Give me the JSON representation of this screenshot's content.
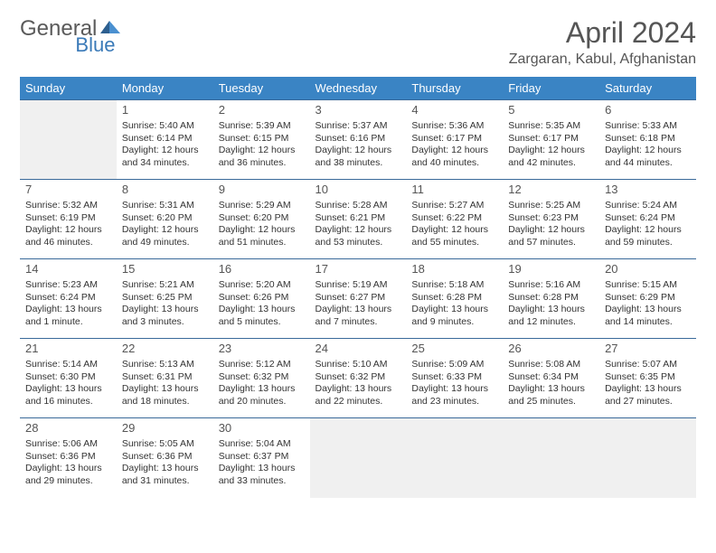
{
  "logo": {
    "part1": "General",
    "part2": "Blue"
  },
  "title": "April 2024",
  "location": "Zargaran, Kabul, Afghanistan",
  "colors": {
    "header_bg": "#3a84c4",
    "header_text": "#ffffff",
    "border": "#3a6a9a",
    "empty_bg": "#f0f0f0",
    "text": "#333333",
    "title_text": "#555555",
    "logo_gray": "#5a5a5a",
    "logo_blue": "#3a7ab8"
  },
  "weekdays": [
    "Sunday",
    "Monday",
    "Tuesday",
    "Wednesday",
    "Thursday",
    "Friday",
    "Saturday"
  ],
  "weeks": [
    [
      null,
      {
        "n": "1",
        "sr": "Sunrise: 5:40 AM",
        "ss": "Sunset: 6:14 PM",
        "d1": "Daylight: 12 hours",
        "d2": "and 34 minutes."
      },
      {
        "n": "2",
        "sr": "Sunrise: 5:39 AM",
        "ss": "Sunset: 6:15 PM",
        "d1": "Daylight: 12 hours",
        "d2": "and 36 minutes."
      },
      {
        "n": "3",
        "sr": "Sunrise: 5:37 AM",
        "ss": "Sunset: 6:16 PM",
        "d1": "Daylight: 12 hours",
        "d2": "and 38 minutes."
      },
      {
        "n": "4",
        "sr": "Sunrise: 5:36 AM",
        "ss": "Sunset: 6:17 PM",
        "d1": "Daylight: 12 hours",
        "d2": "and 40 minutes."
      },
      {
        "n": "5",
        "sr": "Sunrise: 5:35 AM",
        "ss": "Sunset: 6:17 PM",
        "d1": "Daylight: 12 hours",
        "d2": "and 42 minutes."
      },
      {
        "n": "6",
        "sr": "Sunrise: 5:33 AM",
        "ss": "Sunset: 6:18 PM",
        "d1": "Daylight: 12 hours",
        "d2": "and 44 minutes."
      }
    ],
    [
      {
        "n": "7",
        "sr": "Sunrise: 5:32 AM",
        "ss": "Sunset: 6:19 PM",
        "d1": "Daylight: 12 hours",
        "d2": "and 46 minutes."
      },
      {
        "n": "8",
        "sr": "Sunrise: 5:31 AM",
        "ss": "Sunset: 6:20 PM",
        "d1": "Daylight: 12 hours",
        "d2": "and 49 minutes."
      },
      {
        "n": "9",
        "sr": "Sunrise: 5:29 AM",
        "ss": "Sunset: 6:20 PM",
        "d1": "Daylight: 12 hours",
        "d2": "and 51 minutes."
      },
      {
        "n": "10",
        "sr": "Sunrise: 5:28 AM",
        "ss": "Sunset: 6:21 PM",
        "d1": "Daylight: 12 hours",
        "d2": "and 53 minutes."
      },
      {
        "n": "11",
        "sr": "Sunrise: 5:27 AM",
        "ss": "Sunset: 6:22 PM",
        "d1": "Daylight: 12 hours",
        "d2": "and 55 minutes."
      },
      {
        "n": "12",
        "sr": "Sunrise: 5:25 AM",
        "ss": "Sunset: 6:23 PM",
        "d1": "Daylight: 12 hours",
        "d2": "and 57 minutes."
      },
      {
        "n": "13",
        "sr": "Sunrise: 5:24 AM",
        "ss": "Sunset: 6:24 PM",
        "d1": "Daylight: 12 hours",
        "d2": "and 59 minutes."
      }
    ],
    [
      {
        "n": "14",
        "sr": "Sunrise: 5:23 AM",
        "ss": "Sunset: 6:24 PM",
        "d1": "Daylight: 13 hours",
        "d2": "and 1 minute."
      },
      {
        "n": "15",
        "sr": "Sunrise: 5:21 AM",
        "ss": "Sunset: 6:25 PM",
        "d1": "Daylight: 13 hours",
        "d2": "and 3 minutes."
      },
      {
        "n": "16",
        "sr": "Sunrise: 5:20 AM",
        "ss": "Sunset: 6:26 PM",
        "d1": "Daylight: 13 hours",
        "d2": "and 5 minutes."
      },
      {
        "n": "17",
        "sr": "Sunrise: 5:19 AM",
        "ss": "Sunset: 6:27 PM",
        "d1": "Daylight: 13 hours",
        "d2": "and 7 minutes."
      },
      {
        "n": "18",
        "sr": "Sunrise: 5:18 AM",
        "ss": "Sunset: 6:28 PM",
        "d1": "Daylight: 13 hours",
        "d2": "and 9 minutes."
      },
      {
        "n": "19",
        "sr": "Sunrise: 5:16 AM",
        "ss": "Sunset: 6:28 PM",
        "d1": "Daylight: 13 hours",
        "d2": "and 12 minutes."
      },
      {
        "n": "20",
        "sr": "Sunrise: 5:15 AM",
        "ss": "Sunset: 6:29 PM",
        "d1": "Daylight: 13 hours",
        "d2": "and 14 minutes."
      }
    ],
    [
      {
        "n": "21",
        "sr": "Sunrise: 5:14 AM",
        "ss": "Sunset: 6:30 PM",
        "d1": "Daylight: 13 hours",
        "d2": "and 16 minutes."
      },
      {
        "n": "22",
        "sr": "Sunrise: 5:13 AM",
        "ss": "Sunset: 6:31 PM",
        "d1": "Daylight: 13 hours",
        "d2": "and 18 minutes."
      },
      {
        "n": "23",
        "sr": "Sunrise: 5:12 AM",
        "ss": "Sunset: 6:32 PM",
        "d1": "Daylight: 13 hours",
        "d2": "and 20 minutes."
      },
      {
        "n": "24",
        "sr": "Sunrise: 5:10 AM",
        "ss": "Sunset: 6:32 PM",
        "d1": "Daylight: 13 hours",
        "d2": "and 22 minutes."
      },
      {
        "n": "25",
        "sr": "Sunrise: 5:09 AM",
        "ss": "Sunset: 6:33 PM",
        "d1": "Daylight: 13 hours",
        "d2": "and 23 minutes."
      },
      {
        "n": "26",
        "sr": "Sunrise: 5:08 AM",
        "ss": "Sunset: 6:34 PM",
        "d1": "Daylight: 13 hours",
        "d2": "and 25 minutes."
      },
      {
        "n": "27",
        "sr": "Sunrise: 5:07 AM",
        "ss": "Sunset: 6:35 PM",
        "d1": "Daylight: 13 hours",
        "d2": "and 27 minutes."
      }
    ],
    [
      {
        "n": "28",
        "sr": "Sunrise: 5:06 AM",
        "ss": "Sunset: 6:36 PM",
        "d1": "Daylight: 13 hours",
        "d2": "and 29 minutes."
      },
      {
        "n": "29",
        "sr": "Sunrise: 5:05 AM",
        "ss": "Sunset: 6:36 PM",
        "d1": "Daylight: 13 hours",
        "d2": "and 31 minutes."
      },
      {
        "n": "30",
        "sr": "Sunrise: 5:04 AM",
        "ss": "Sunset: 6:37 PM",
        "d1": "Daylight: 13 hours",
        "d2": "and 33 minutes."
      },
      null,
      null,
      null,
      null
    ]
  ]
}
